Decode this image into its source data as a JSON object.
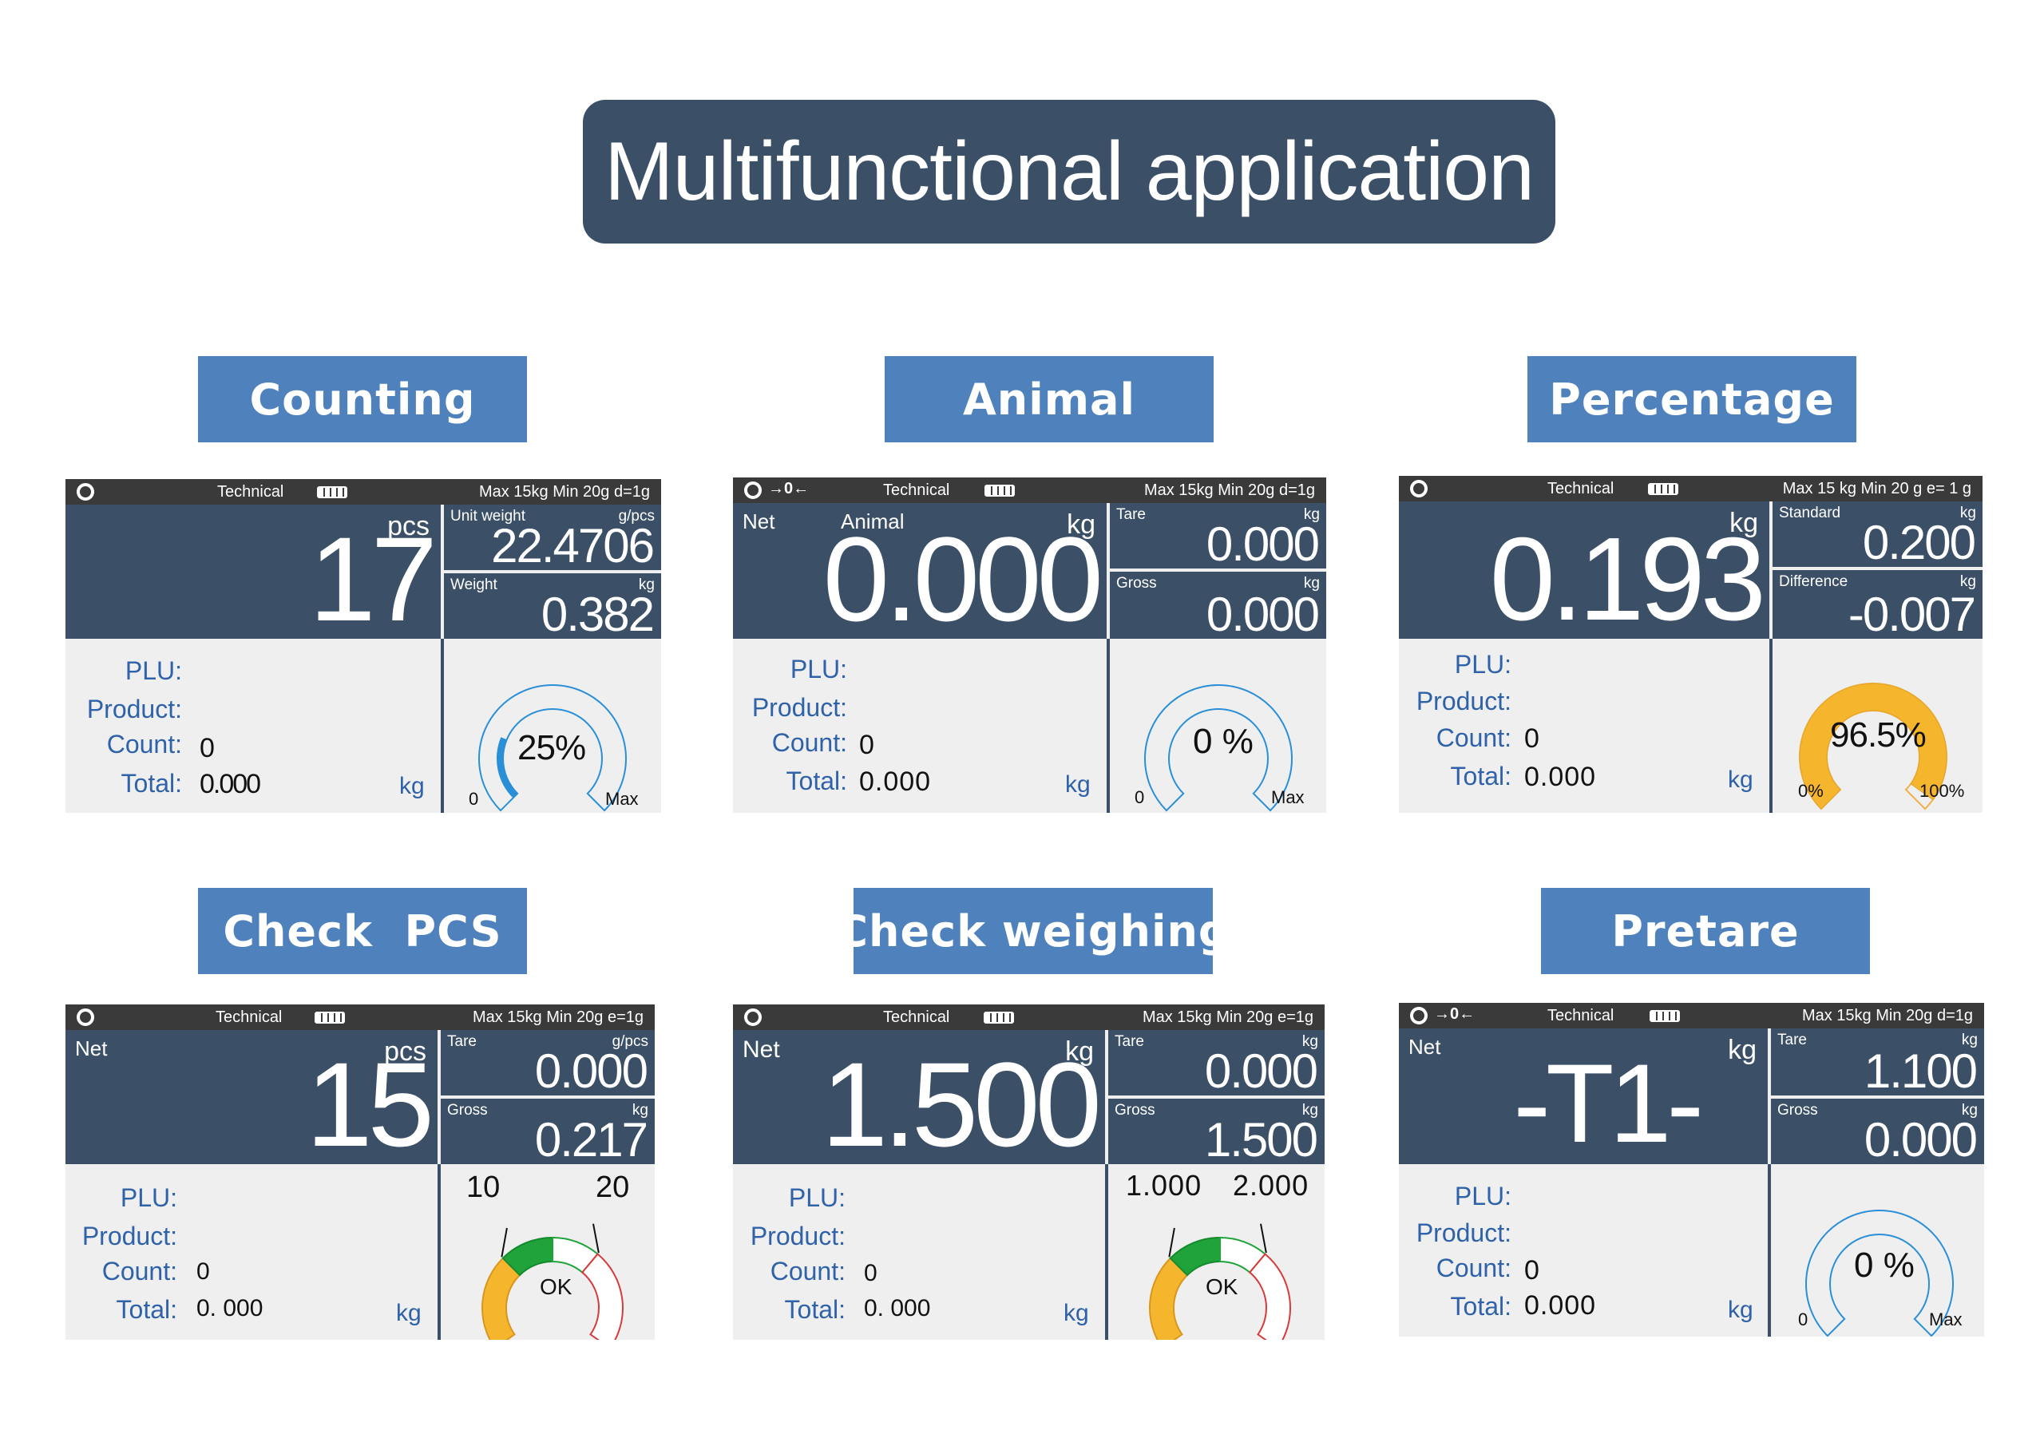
{
  "title": "Multifunctional application",
  "labels": {
    "counting": "Counting",
    "animal": "Animal",
    "percentage": "Percentage",
    "check_pcs": "Check  PCS",
    "check_weighing": "Check weighing",
    "pretare": "Pretare"
  },
  "common": {
    "technical": "Technical",
    "zero_symbol": "→0←",
    "plu": "PLU:",
    "product": "Product:",
    "count": "Count:",
    "total": "Total:",
    "kg": "kg"
  },
  "counting": {
    "spec": "Max 15kg Min 20g d=1g",
    "unit": "pcs",
    "value": "17",
    "sub1": {
      "caption": "Unit weight",
      "unit": "g/pcs",
      "value": "22.4706"
    },
    "sub2": {
      "caption": "Weight",
      "unit": "kg",
      "value": "0.382"
    },
    "count": "0",
    "total": "0.000",
    "gauge": {
      "text": "25%",
      "min": "0",
      "max": "Max",
      "level": 0.25
    }
  },
  "animal": {
    "spec": "Max 15kg Min 20g d=1g",
    "net": "Net",
    "mode": "Animal",
    "unit": "kg",
    "value": "0.000",
    "sub1": {
      "caption": "Tare",
      "unit": "kg",
      "value": "0.000"
    },
    "sub2": {
      "caption": "Gross",
      "unit": "kg",
      "value": "0.000"
    },
    "count": "0",
    "total": "0.000",
    "gauge": {
      "text": "0 %",
      "min": "0",
      "max": "Max",
      "level": 0
    }
  },
  "percentage": {
    "spec": "Max 15 kg Min 20 g e= 1 g",
    "unit": "kg",
    "value": "0.193",
    "sub1": {
      "caption": "Standard",
      "unit": "kg",
      "value": "0.200"
    },
    "sub2": {
      "caption": "Difference",
      "unit": "kg",
      "value": "-0.007"
    },
    "count": "0",
    "total": "0.000",
    "gauge": {
      "text": "96.5%",
      "min": "0%",
      "max": "100%",
      "level": 0.965
    }
  },
  "check_pcs": {
    "spec": "Max 15kg Min 20g e=1g",
    "net": "Net",
    "unit": "pcs",
    "value": "15",
    "sub1": {
      "caption": "Tare",
      "unit": "g/pcs",
      "value": "0.000"
    },
    "sub2": {
      "caption": "Gross",
      "unit": "kg",
      "value": "0.217"
    },
    "count": "0",
    "total": "0. 000",
    "gauge": {
      "low": "10",
      "high": "20",
      "status": "OK"
    }
  },
  "check_weighing": {
    "spec": "Max 15kg Min 20g e=1g",
    "net": "Net",
    "unit": "kg",
    "value": "1.500",
    "sub1": {
      "caption": "Tare",
      "unit": "kg",
      "value": "0.000"
    },
    "sub2": {
      "caption": "Gross",
      "unit": "kg",
      "value": "1.500"
    },
    "count": "0",
    "total": "0. 000",
    "gauge": {
      "low": "1.000",
      "high": "2.000",
      "status": "OK"
    }
  },
  "pretare": {
    "spec": "Max 15kg Min 20g d=1g",
    "net": "Net",
    "unit": "kg",
    "value": "-T1-",
    "sub1": {
      "caption": "Tare",
      "unit": "kg",
      "value": "1.100"
    },
    "sub2": {
      "caption": "Gross",
      "unit": "kg",
      "value": "0.000"
    },
    "count": "0",
    "total": "0.000",
    "gauge": {
      "text": "0 %",
      "min": "0",
      "max": "Max",
      "level": 0
    }
  }
}
